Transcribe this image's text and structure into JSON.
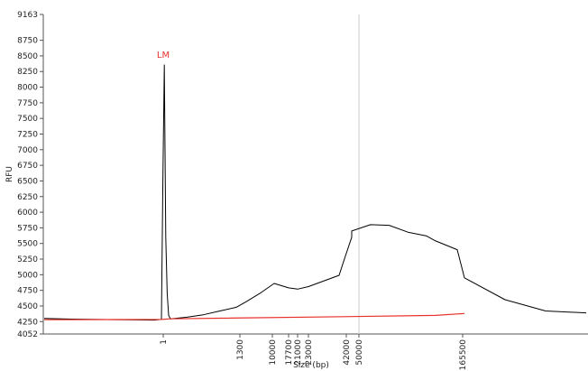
{
  "chart_data": {
    "type": "line",
    "title": "",
    "xlabel": "Size (bp)",
    "ylabel": "RFU",
    "ylim": [
      4052,
      9163
    ],
    "y_ticks": [
      4052,
      4250,
      4500,
      4750,
      5000,
      5250,
      5500,
      5750,
      6000,
      6250,
      6500,
      6750,
      7000,
      7250,
      7500,
      7750,
      8000,
      8250,
      8500,
      8750,
      9163
    ],
    "x_ticks": [
      "1",
      "1300",
      "10000",
      "17700",
      "21000",
      "23000",
      "42000",
      "50000",
      "165500"
    ],
    "peak_annotation": {
      "label": "LM",
      "size": "1",
      "rfu": 8355,
      "color": "#e8302a"
    },
    "reference_marker": "50000",
    "legend": "none",
    "grid": false,
    "series": [
      {
        "color": "#000000",
        "points": [
          [
            "<1",
            4300
          ],
          [
            "<1",
            4290
          ],
          [
            "<1",
            4285
          ],
          [
            "<1",
            4280
          ],
          [
            "<1",
            4275
          ],
          [
            "1",
            4285
          ],
          [
            "1",
            6500
          ],
          [
            "1",
            8355
          ],
          [
            "1",
            5600
          ],
          [
            "1",
            4700
          ],
          [
            "1",
            4350
          ],
          [
            "1300",
            4295
          ],
          [
            "1300",
            4320
          ],
          [
            "1300",
            4360
          ],
          [
            "1300",
            4420
          ],
          [
            "1300",
            4480
          ],
          [
            "10000",
            4560
          ],
          [
            "10000",
            4700
          ],
          [
            "10000",
            4860
          ],
          [
            "17700",
            4790
          ],
          [
            "21000",
            4770
          ],
          [
            "23000",
            4810
          ],
          [
            "42000",
            4990
          ],
          [
            "42000",
            5300
          ],
          [
            "42000",
            5600
          ],
          [
            "50000",
            5700
          ],
          [
            "50000",
            5800
          ],
          [
            "50000",
            5790
          ],
          [
            "50000",
            5680
          ],
          [
            "50000",
            5620
          ],
          [
            "165500",
            5540
          ],
          [
            "165500",
            5400
          ],
          [
            ">165500",
            4950
          ],
          [
            ">165500",
            4600
          ],
          [
            ">165500",
            4420
          ],
          [
            ">165500",
            4390
          ]
        ]
      },
      {
        "color": "#e8302a",
        "points": [
          [
            "<1",
            4280
          ],
          [
            "1",
            4285
          ],
          [
            "1300",
            4295
          ],
          [
            "50000",
            4330
          ],
          [
            "165500",
            4350
          ],
          [
            ">165500",
            4380
          ]
        ]
      }
    ]
  }
}
